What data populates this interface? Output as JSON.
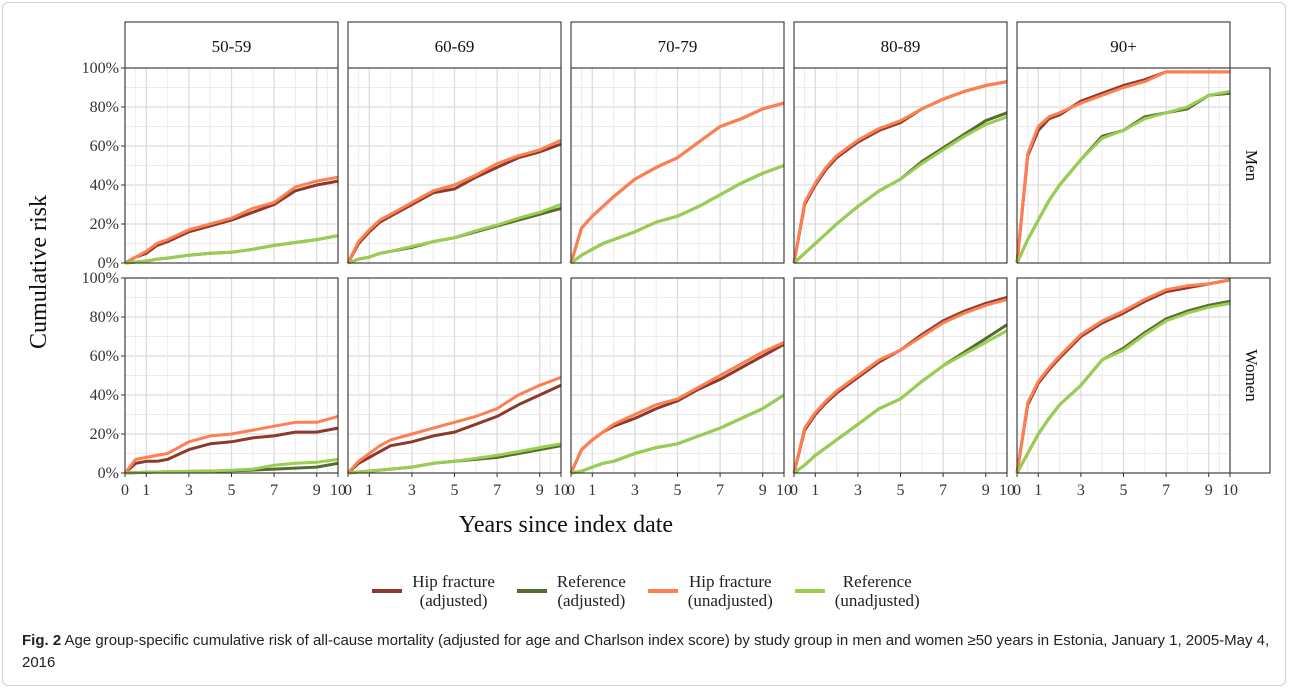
{
  "figure": {
    "caption_label": "Fig. 2",
    "caption_text": "Age group-specific cumulative risk of all-cause mortality (adjusted for age and Charlson index score) by study group in men and women ≥50 years in Estonia, January 1, 2005-May 4, 2016",
    "ylabel": "Cumulative risk",
    "xlabel": "Years since index date"
  },
  "legend": [
    {
      "label_line1": "Hip fracture",
      "label_line2": "(adjusted)",
      "color": "#8B3A2B"
    },
    {
      "label_line1": "Reference",
      "label_line2": "(adjusted)",
      "color": "#556B2F"
    },
    {
      "label_line1": "Hip fracture",
      "label_line2": "(unadjusted)",
      "color": "#FF7F50"
    },
    {
      "label_line1": "Reference",
      "label_line2": "(unadjusted)",
      "color": "#9ACD50"
    }
  ],
  "chart_data": {
    "type": "line",
    "facet_columns": [
      "50-59",
      "60-69",
      "70-79",
      "80-89",
      "90+"
    ],
    "facet_rows": [
      "Men",
      "Women"
    ],
    "x_ticks": [
      0,
      1,
      3,
      5,
      7,
      9,
      10
    ],
    "xlim": [
      0,
      10
    ],
    "ylim": [
      0,
      1
    ],
    "y_ticks": [
      "0%",
      "20%",
      "40%",
      "60%",
      "80%",
      "100%"
    ],
    "grid": true,
    "legend_position": "bottom",
    "series_names": [
      "Hip fracture (adjusted)",
      "Reference (adjusted)",
      "Hip fracture (unadjusted)",
      "Reference (unadjusted)"
    ],
    "series_colors": [
      "#8B3A2B",
      "#556B2F",
      "#FF7F50",
      "#9ACD50"
    ],
    "x": [
      0,
      0.5,
      1,
      1.5,
      2,
      3,
      4,
      5,
      6,
      7,
      8,
      9,
      10
    ],
    "panels": {
      "Men|50-59": [
        [
          0,
          0.03,
          0.05,
          0.09,
          0.11,
          0.16,
          0.19,
          0.22,
          0.26,
          0.3,
          0.37,
          0.4,
          0.42
        ],
        [
          0,
          0.005,
          0.01,
          0.02,
          0.025,
          0.04,
          0.05,
          0.055,
          0.07,
          0.09,
          0.105,
          0.12,
          0.14
        ],
        [
          0,
          0.03,
          0.06,
          0.1,
          0.12,
          0.17,
          0.2,
          0.23,
          0.28,
          0.31,
          0.39,
          0.42,
          0.44
        ],
        [
          0,
          0.005,
          0.01,
          0.02,
          0.025,
          0.04,
          0.05,
          0.055,
          0.07,
          0.09,
          0.105,
          0.12,
          0.14
        ]
      ],
      "Men|60-69": [
        [
          0,
          0.1,
          0.16,
          0.21,
          0.24,
          0.3,
          0.36,
          0.38,
          0.44,
          0.49,
          0.54,
          0.57,
          0.61
        ],
        [
          0,
          0.02,
          0.03,
          0.05,
          0.06,
          0.08,
          0.11,
          0.13,
          0.16,
          0.19,
          0.22,
          0.25,
          0.28
        ],
        [
          0,
          0.11,
          0.17,
          0.22,
          0.25,
          0.31,
          0.37,
          0.4,
          0.45,
          0.51,
          0.55,
          0.58,
          0.63
        ],
        [
          0,
          0.02,
          0.03,
          0.05,
          0.06,
          0.085,
          0.11,
          0.13,
          0.165,
          0.195,
          0.23,
          0.26,
          0.3
        ]
      ],
      "Men|70-79": [
        [
          0,
          0.18,
          0.24,
          0.29,
          0.34,
          0.43,
          0.49,
          0.54,
          0.62,
          0.7,
          0.74,
          0.79,
          0.82
        ],
        [
          0,
          0.04,
          0.07,
          0.1,
          0.12,
          0.16,
          0.21,
          0.24,
          0.29,
          0.35,
          0.41,
          0.46,
          0.5
        ],
        [
          0,
          0.18,
          0.24,
          0.29,
          0.34,
          0.43,
          0.49,
          0.54,
          0.62,
          0.7,
          0.74,
          0.79,
          0.82
        ],
        [
          0,
          0.04,
          0.07,
          0.1,
          0.12,
          0.16,
          0.21,
          0.24,
          0.29,
          0.35,
          0.41,
          0.46,
          0.5
        ]
      ],
      "Men|80-89": [
        [
          0,
          0.3,
          0.4,
          0.48,
          0.54,
          0.62,
          0.68,
          0.72,
          0.79,
          0.84,
          0.88,
          0.91,
          0.93
        ],
        [
          0,
          0.05,
          0.1,
          0.15,
          0.2,
          0.29,
          0.37,
          0.43,
          0.52,
          0.59,
          0.66,
          0.73,
          0.77
        ],
        [
          0,
          0.31,
          0.41,
          0.49,
          0.55,
          0.63,
          0.69,
          0.73,
          0.79,
          0.84,
          0.88,
          0.91,
          0.93
        ],
        [
          0,
          0.05,
          0.1,
          0.15,
          0.2,
          0.29,
          0.37,
          0.43,
          0.51,
          0.58,
          0.65,
          0.71,
          0.75
        ]
      ],
      "Men|90+": [
        [
          0,
          0.55,
          0.68,
          0.74,
          0.76,
          0.83,
          0.87,
          0.91,
          0.94,
          0.98,
          0.98,
          0.98,
          0.98
        ],
        [
          0,
          0.12,
          0.22,
          0.32,
          0.4,
          0.53,
          0.65,
          0.68,
          0.75,
          0.77,
          0.79,
          0.86,
          0.87
        ],
        [
          0,
          0.56,
          0.7,
          0.75,
          0.77,
          0.82,
          0.86,
          0.9,
          0.93,
          0.98,
          0.98,
          0.98,
          0.98
        ],
        [
          0,
          0.12,
          0.22,
          0.32,
          0.4,
          0.53,
          0.64,
          0.68,
          0.74,
          0.77,
          0.8,
          0.86,
          0.88
        ]
      ],
      "Women|50-59": [
        [
          0,
          0.05,
          0.06,
          0.06,
          0.07,
          0.12,
          0.15,
          0.16,
          0.18,
          0.19,
          0.21,
          0.21,
          0.23
        ],
        [
          0,
          0.002,
          0.004,
          0.005,
          0.006,
          0.008,
          0.01,
          0.012,
          0.015,
          0.02,
          0.025,
          0.03,
          0.05
        ],
        [
          0,
          0.07,
          0.08,
          0.09,
          0.1,
          0.16,
          0.19,
          0.2,
          0.22,
          0.24,
          0.26,
          0.26,
          0.29
        ],
        [
          0,
          0.002,
          0.004,
          0.005,
          0.006,
          0.008,
          0.01,
          0.014,
          0.02,
          0.04,
          0.05,
          0.055,
          0.07
        ]
      ],
      "Women|60-69": [
        [
          0,
          0.05,
          0.08,
          0.11,
          0.14,
          0.16,
          0.19,
          0.21,
          0.25,
          0.29,
          0.35,
          0.4,
          0.45
        ],
        [
          0,
          0.005,
          0.01,
          0.015,
          0.02,
          0.03,
          0.05,
          0.06,
          0.07,
          0.08,
          0.1,
          0.12,
          0.14
        ],
        [
          0,
          0.06,
          0.1,
          0.14,
          0.17,
          0.2,
          0.23,
          0.26,
          0.29,
          0.33,
          0.4,
          0.45,
          0.49
        ],
        [
          0,
          0.005,
          0.01,
          0.015,
          0.02,
          0.03,
          0.05,
          0.06,
          0.075,
          0.09,
          0.11,
          0.13,
          0.15
        ]
      ],
      "Women|70-79": [
        [
          0,
          0.12,
          0.17,
          0.21,
          0.24,
          0.28,
          0.33,
          0.37,
          0.43,
          0.48,
          0.54,
          0.6,
          0.66
        ],
        [
          0,
          0.01,
          0.03,
          0.05,
          0.06,
          0.1,
          0.13,
          0.15,
          0.19,
          0.23,
          0.28,
          0.33,
          0.4
        ],
        [
          0,
          0.12,
          0.17,
          0.21,
          0.25,
          0.3,
          0.35,
          0.38,
          0.44,
          0.5,
          0.56,
          0.62,
          0.67
        ],
        [
          0,
          0.01,
          0.03,
          0.05,
          0.06,
          0.1,
          0.13,
          0.15,
          0.19,
          0.23,
          0.28,
          0.33,
          0.4
        ]
      ],
      "Women|80-89": [
        [
          0,
          0.22,
          0.3,
          0.36,
          0.41,
          0.49,
          0.57,
          0.63,
          0.71,
          0.78,
          0.83,
          0.87,
          0.9
        ],
        [
          0,
          0.04,
          0.09,
          0.13,
          0.17,
          0.25,
          0.33,
          0.38,
          0.47,
          0.55,
          0.62,
          0.69,
          0.76
        ],
        [
          0,
          0.23,
          0.31,
          0.37,
          0.42,
          0.5,
          0.58,
          0.63,
          0.7,
          0.77,
          0.82,
          0.86,
          0.89
        ],
        [
          0,
          0.04,
          0.09,
          0.13,
          0.17,
          0.25,
          0.33,
          0.38,
          0.47,
          0.55,
          0.61,
          0.67,
          0.73
        ]
      ],
      "Women|90+": [
        [
          0,
          0.35,
          0.46,
          0.53,
          0.59,
          0.7,
          0.77,
          0.82,
          0.88,
          0.93,
          0.95,
          0.97,
          0.99
        ],
        [
          0,
          0.1,
          0.2,
          0.28,
          0.35,
          0.45,
          0.58,
          0.64,
          0.72,
          0.79,
          0.83,
          0.86,
          0.88
        ],
        [
          0,
          0.36,
          0.47,
          0.54,
          0.6,
          0.71,
          0.78,
          0.83,
          0.89,
          0.94,
          0.96,
          0.97,
          0.99
        ],
        [
          0,
          0.1,
          0.2,
          0.28,
          0.35,
          0.45,
          0.58,
          0.63,
          0.71,
          0.78,
          0.82,
          0.85,
          0.87
        ]
      ]
    }
  }
}
